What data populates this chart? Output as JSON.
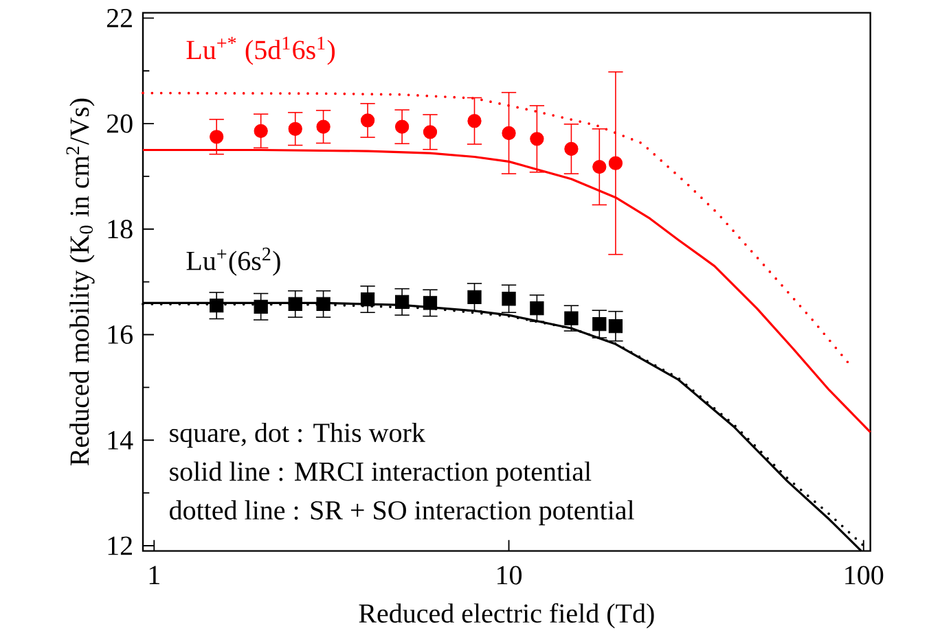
{
  "chart_data": {
    "type": "scatter",
    "xlabel": "Reduced electric field (Td)",
    "ylabel": "Reduced mobility (K$_{0}$ in cm$^{2}$/Vs)",
    "log": "x",
    "xlim": [
      0.93,
      104.5
    ],
    "ylim": [
      11.9,
      22.1
    ],
    "xticks": [
      1,
      10,
      100
    ],
    "yticks": [
      12,
      14,
      16,
      18,
      20,
      22
    ],
    "grid": false,
    "legend": "top left",
    "series": [
      {
        "name": "Lu$^{+*}$ (5d$^{1}$6s$^{1}$)",
        "color": "#ff0000",
        "marker": "circle",
        "x": [
          1.5,
          2,
          2.5,
          3,
          4,
          5,
          6,
          8,
          10,
          12,
          15,
          18,
          20
        ],
        "values": [
          19.75,
          19.86,
          19.9,
          19.94,
          20.06,
          19.94,
          19.84,
          20.05,
          19.82,
          19.71,
          19.52,
          19.18,
          19.25
        ],
        "errors": [
          0.33,
          0.32,
          0.31,
          0.31,
          0.32,
          0.32,
          0.33,
          0.44,
          0.77,
          0.63,
          0.47,
          0.72,
          1.73
        ]
      },
      {
        "name": "Lu$^{+}$(6s$^{2}$)",
        "color": "#000000",
        "marker": "square",
        "x": [
          1.5,
          2,
          2.5,
          3,
          4,
          5,
          6,
          8,
          10,
          12,
          15,
          18,
          20
        ],
        "values": [
          16.55,
          16.53,
          16.58,
          16.58,
          16.67,
          16.62,
          16.6,
          16.71,
          16.68,
          16.5,
          16.31,
          16.2,
          16.16
        ],
        "errors": [
          0.25,
          0.25,
          0.25,
          0.25,
          0.25,
          0.25,
          0.25,
          0.26,
          0.26,
          0.25,
          0.24,
          0.26,
          0.28
        ]
      },
      {
        "type": "line",
        "color": "#ff0000",
        "line_style": "solid",
        "x": [
          0.93,
          2,
          4,
          6,
          8,
          10,
          15,
          20,
          25,
          30,
          38,
          50,
          63,
          80,
          104.5
        ],
        "values": [
          19.5,
          19.5,
          19.48,
          19.44,
          19.37,
          19.28,
          18.95,
          18.6,
          18.2,
          17.8,
          17.3,
          16.5,
          15.75,
          14.95,
          14.15
        ]
      },
      {
        "type": "line",
        "color": "#ff0000",
        "line_style": "dotted",
        "x": [
          0.93,
          3,
          5,
          8,
          11.6,
          17.6,
          23.7,
          31.9,
          38.9,
          51.4,
          72,
          92.8
        ],
        "values": [
          20.58,
          20.57,
          20.55,
          20.48,
          20.25,
          19.97,
          19.63,
          18.85,
          18.29,
          17.38,
          16.27,
          15.38
        ]
      },
      {
        "type": "line",
        "color": "#000000",
        "line_style": "solid",
        "x": [
          0.93,
          3,
          5,
          8,
          10,
          15,
          20,
          30,
          43,
          61,
          80,
          98.5
        ],
        "values": [
          16.6,
          16.6,
          16.56,
          16.45,
          16.37,
          16.12,
          15.82,
          15.15,
          14.26,
          13.22,
          12.5,
          11.9
        ]
      },
      {
        "type": "line",
        "color": "#000000",
        "line_style": "dotted",
        "x": [
          0.93,
          3,
          6,
          10,
          15,
          20,
          30,
          43,
          61,
          80,
          100
        ],
        "values": [
          16.58,
          16.57,
          16.5,
          16.35,
          16.12,
          15.83,
          15.18,
          14.3,
          13.28,
          12.6,
          12.0
        ]
      }
    ],
    "annotations": [
      "square, dot : This work",
      "solid line   : MRCI interaction potential",
      "dotted line  : SR + SO interaction potential"
    ]
  }
}
